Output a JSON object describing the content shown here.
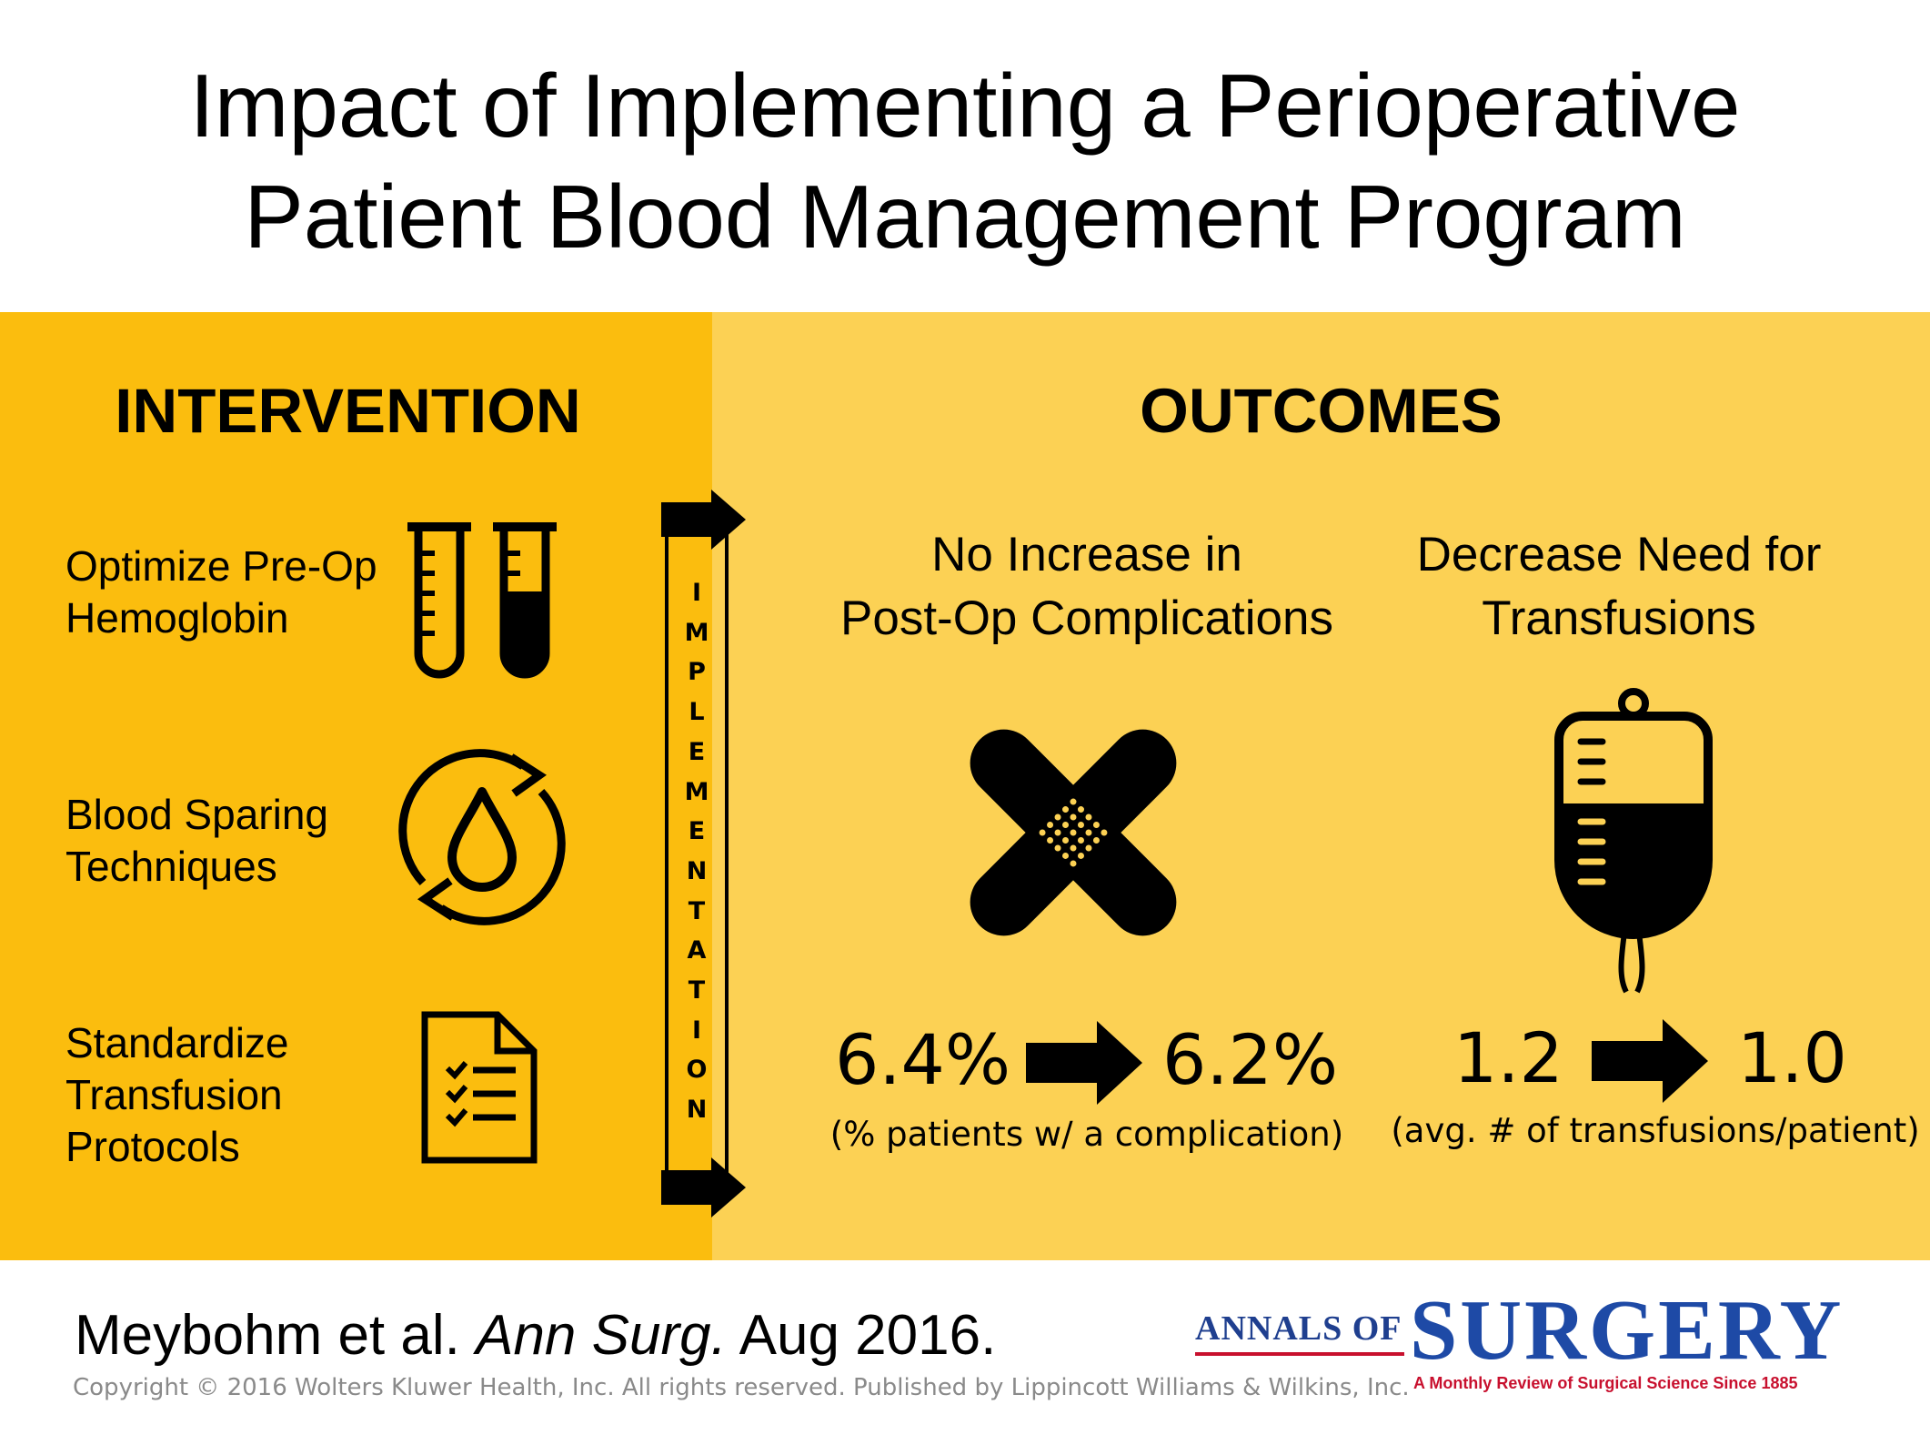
{
  "title": {
    "line1": "Impact of Implementing a Perioperative",
    "line2": "Patient Blood Management Program"
  },
  "intervention": {
    "heading": "INTERVENTION",
    "items": [
      {
        "line1": "Optimize Pre-Op",
        "line2": "Hemoglobin",
        "line3": "",
        "icon": "test-tubes-icon"
      },
      {
        "line1": "Blood Sparing",
        "line2": "Techniques",
        "line3": "",
        "icon": "blood-drop-cycle-icon"
      },
      {
        "line1": "Standardize",
        "line2": "Transfusion",
        "line3": "Protocols",
        "icon": "checklist-document-icon"
      }
    ]
  },
  "implementation": {
    "letters": [
      "I",
      "M",
      "P",
      "L",
      "E",
      "M",
      "E",
      "N",
      "T",
      "A",
      "T",
      "I",
      "O",
      "N"
    ]
  },
  "outcomes": {
    "heading": "OUTCOMES",
    "complications": {
      "line1": "No Increase in",
      "line2": "Post-Op Complications",
      "icon": "crossed-bandage-icon",
      "before": "6.4%",
      "after": "6.2%",
      "note": "(% patients w/ a complication)"
    },
    "transfusions": {
      "line1": "Decrease Need for",
      "line2": "Transfusions",
      "icon": "blood-bag-icon",
      "before": "1.2",
      "after": "1.0",
      "note": "(avg. # of transfusions/patient)"
    }
  },
  "citation": {
    "authors": "Meybohm et al.",
    "journal": "Ann Surg.",
    "date": "Aug 2016."
  },
  "copyright": "Copyright © 2016 Wolters Kluwer Health, Inc. All rights reserved.  Published by Lippincott Williams & Wilkins, Inc.",
  "logo": {
    "prefix": "ANNALS OF",
    "word": "SURGERY",
    "tagline": "A Monthly Review of Surgical Science Since 1885"
  },
  "colors": {
    "left_panel": "#fbbd0e",
    "right_panel": "#fcd154",
    "logo_blue": "#1e4aa6",
    "logo_red": "#c8102e"
  }
}
